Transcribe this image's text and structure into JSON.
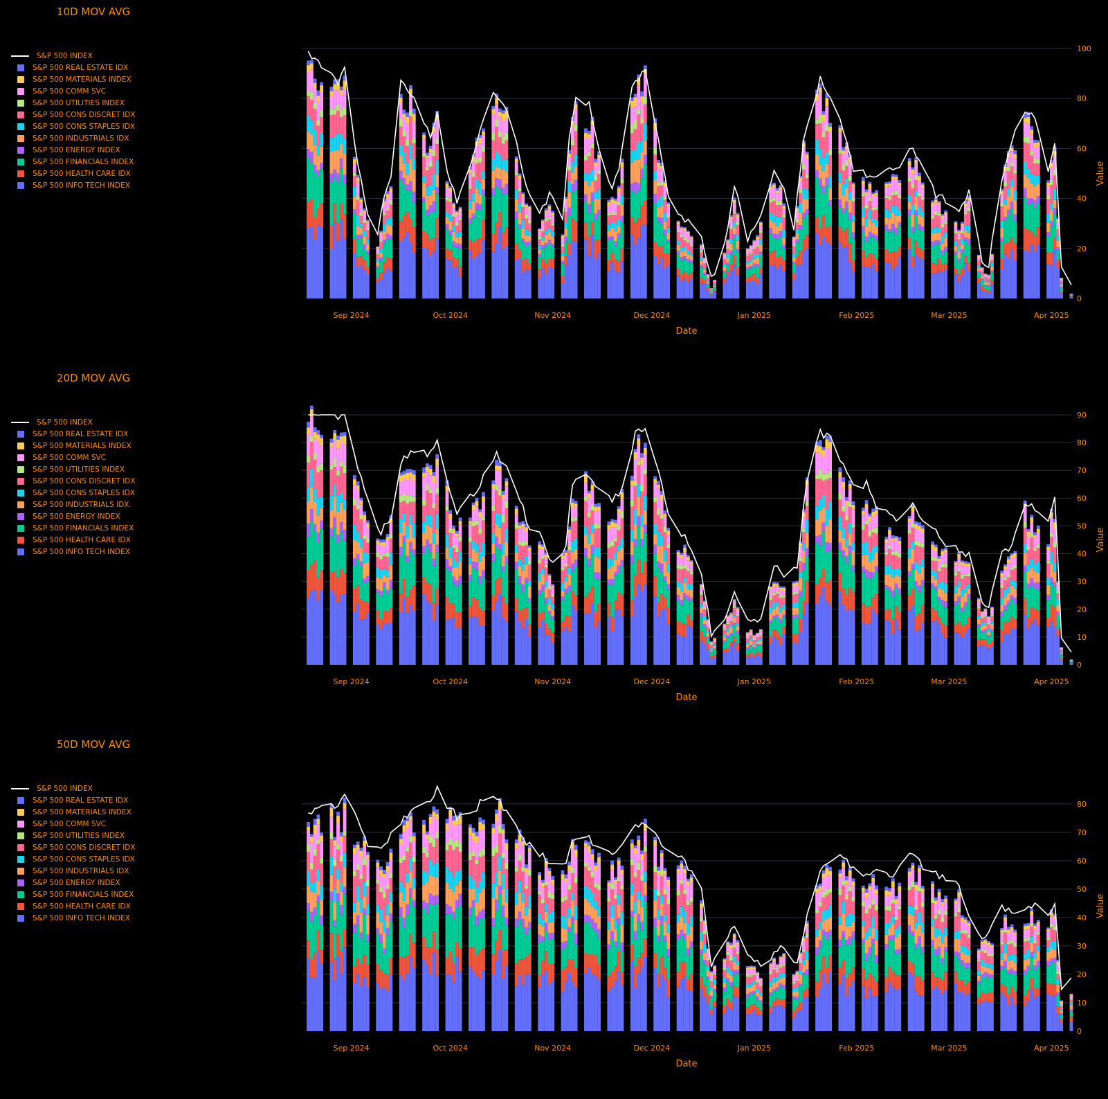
{
  "figure": {
    "background": "#000000",
    "text_color": "#ff8c00",
    "grid_color": "#283442"
  },
  "legend_items": [
    {
      "label": "S&P 500 INDEX",
      "kind": "line",
      "color": "#ffffff"
    },
    {
      "label": "S&P 500 REAL ESTATE IDX",
      "kind": "bar",
      "color": "#636efa"
    },
    {
      "label": "S&P 500 MATERIALS INDEX",
      "kind": "bar",
      "color": "#fecb52"
    },
    {
      "label": "S&P 500 COMM SVC",
      "kind": "bar",
      "color": "#ff97ff"
    },
    {
      "label": "S&P 500 UTILITIES INDEX",
      "kind": "bar",
      "color": "#b6e880"
    },
    {
      "label": "S&P 500 CONS DISCRET IDX",
      "kind": "bar",
      "color": "#ff6692"
    },
    {
      "label": "S&P 500 CONS STAPLES IDX",
      "kind": "bar",
      "color": "#19d3f3"
    },
    {
      "label": "S&P 500 INDUSTRIALS IDX",
      "kind": "bar",
      "color": "#ffa15a"
    },
    {
      "label": "S&P 500 ENERGY INDEX",
      "kind": "bar",
      "color": "#ab63fa"
    },
    {
      "label": "S&P 500 FINANCIALS INDEX",
      "kind": "bar",
      "color": "#00cc96"
    },
    {
      "label": "S&P 500 HEALTH CARE IDX",
      "kind": "bar",
      "color": "#ef553b"
    },
    {
      "label": "S&P 500 INFO TECH INDEX",
      "kind": "bar",
      "color": "#636efa"
    }
  ],
  "chart_data": [
    {
      "type": "bar",
      "barmode": "stack",
      "title": "10D MOV AVG",
      "xlabel": "Date",
      "ylabel": "Value",
      "ylim": [
        0,
        100
      ],
      "yticks": [
        0,
        20,
        40,
        60,
        80,
        100
      ],
      "xticks": [
        {
          "label": "Sep 2024",
          "date": "2024-09-01"
        },
        {
          "label": "Oct 2024",
          "date": "2024-10-01"
        },
        {
          "label": "Nov 2024",
          "date": "2024-11-01"
        },
        {
          "label": "Dec 2024",
          "date": "2024-12-01"
        },
        {
          "label": "Jan 2025",
          "date": "2025-01-01"
        },
        {
          "label": "Feb 2025",
          "date": "2025-02-01"
        },
        {
          "label": "Mar 2025",
          "date": "2025-03-01"
        },
        {
          "label": "Apr 2025",
          "date": "2025-04-01"
        }
      ],
      "xrange": [
        "2024-08-17",
        "2025-04-07"
      ],
      "grid": true,
      "legend_position": "left",
      "date_keypoints": [
        [
          "2024-08-19",
          94
        ],
        [
          "2024-08-23",
          90
        ],
        [
          "2024-08-28",
          82
        ],
        [
          "2024-08-30",
          88
        ],
        [
          "2024-09-03",
          50
        ],
        [
          "2024-09-06",
          30
        ],
        [
          "2024-09-09",
          22
        ],
        [
          "2024-09-11",
          38
        ],
        [
          "2024-09-13",
          45
        ],
        [
          "2024-09-16",
          83
        ],
        [
          "2024-09-20",
          78
        ],
        [
          "2024-09-25",
          60
        ],
        [
          "2024-09-27",
          72
        ],
        [
          "2024-09-30",
          48
        ],
        [
          "2024-10-03",
          36
        ],
        [
          "2024-10-07",
          50
        ],
        [
          "2024-10-10",
          65
        ],
        [
          "2024-10-14",
          80
        ],
        [
          "2024-10-18",
          72
        ],
        [
          "2024-10-21",
          60
        ],
        [
          "2024-10-24",
          40
        ],
        [
          "2024-10-28",
          30
        ],
        [
          "2024-10-31",
          38
        ],
        [
          "2024-11-04",
          28
        ],
        [
          "2024-11-06",
          62
        ],
        [
          "2024-11-08",
          76
        ],
        [
          "2024-11-12",
          74
        ],
        [
          "2024-11-15",
          55
        ],
        [
          "2024-11-19",
          40
        ],
        [
          "2024-11-21",
          48
        ],
        [
          "2024-11-25",
          82
        ],
        [
          "2024-11-29",
          88
        ],
        [
          "2024-12-03",
          60
        ],
        [
          "2024-12-06",
          36
        ],
        [
          "2024-12-11",
          28
        ],
        [
          "2024-12-16",
          22
        ],
        [
          "2024-12-19",
          4
        ],
        [
          "2024-12-23",
          18
        ],
        [
          "2024-12-26",
          42
        ],
        [
          "2024-12-30",
          20
        ],
        [
          "2025-01-03",
          30
        ],
        [
          "2025-01-07",
          48
        ],
        [
          "2025-01-10",
          40
        ],
        [
          "2025-01-13",
          25
        ],
        [
          "2025-01-16",
          60
        ],
        [
          "2025-01-21",
          84
        ],
        [
          "2025-01-24",
          78
        ],
        [
          "2025-01-28",
          64
        ],
        [
          "2025-01-31",
          48
        ],
        [
          "2025-02-04",
          46
        ],
        [
          "2025-02-07",
          44
        ],
        [
          "2025-02-11",
          48
        ],
        [
          "2025-02-14",
          50
        ],
        [
          "2025-02-18",
          58
        ],
        [
          "2025-02-21",
          48
        ],
        [
          "2025-02-25",
          38
        ],
        [
          "2025-02-28",
          36
        ],
        [
          "2025-03-04",
          30
        ],
        [
          "2025-03-07",
          40
        ],
        [
          "2025-03-11",
          12
        ],
        [
          "2025-03-13",
          10
        ],
        [
          "2025-03-17",
          45
        ],
        [
          "2025-03-20",
          60
        ],
        [
          "2025-03-24",
          72
        ],
        [
          "2025-03-27",
          68
        ],
        [
          "2025-03-31",
          46
        ],
        [
          "2025-04-02",
          60
        ],
        [
          "2025-04-04",
          8
        ],
        [
          "2025-04-07",
          2
        ]
      ]
    },
    {
      "type": "bar",
      "barmode": "stack",
      "title": "20D MOV AVG",
      "xlabel": "Date",
      "ylabel": "Value",
      "ylim": [
        0,
        90
      ],
      "yticks": [
        0,
        10,
        20,
        30,
        40,
        50,
        60,
        70,
        80,
        90
      ],
      "xticks": [
        {
          "label": "Sep 2024",
          "date": "2024-09-01"
        },
        {
          "label": "Oct 2024",
          "date": "2024-10-01"
        },
        {
          "label": "Nov 2024",
          "date": "2024-11-01"
        },
        {
          "label": "Dec 2024",
          "date": "2024-12-01"
        },
        {
          "label": "Jan 2025",
          "date": "2025-01-01"
        },
        {
          "label": "Feb 2025",
          "date": "2025-02-01"
        },
        {
          "label": "Mar 2025",
          "date": "2025-03-01"
        },
        {
          "label": "Apr 2025",
          "date": "2025-04-01"
        }
      ],
      "xrange": [
        "2024-08-17",
        "2025-04-07"
      ],
      "grid": true,
      "legend_position": "left",
      "date_keypoints": [
        [
          "2024-08-19",
          86
        ],
        [
          "2024-08-23",
          88
        ],
        [
          "2024-08-28",
          86
        ],
        [
          "2024-08-30",
          90
        ],
        [
          "2024-09-03",
          68
        ],
        [
          "2024-09-06",
          55
        ],
        [
          "2024-09-10",
          44
        ],
        [
          "2024-09-13",
          50
        ],
        [
          "2024-09-16",
          70
        ],
        [
          "2024-09-20",
          74
        ],
        [
          "2024-09-25",
          72
        ],
        [
          "2024-09-27",
          76
        ],
        [
          "2024-09-30",
          62
        ],
        [
          "2024-10-03",
          52
        ],
        [
          "2024-10-08",
          58
        ],
        [
          "2024-10-11",
          64
        ],
        [
          "2024-10-15",
          72
        ],
        [
          "2024-10-18",
          68
        ],
        [
          "2024-10-22",
          56
        ],
        [
          "2024-10-25",
          46
        ],
        [
          "2024-10-29",
          42
        ],
        [
          "2024-11-01",
          32
        ],
        [
          "2024-11-05",
          40
        ],
        [
          "2024-11-07",
          62
        ],
        [
          "2024-11-11",
          66
        ],
        [
          "2024-11-14",
          62
        ],
        [
          "2024-11-19",
          56
        ],
        [
          "2024-11-22",
          60
        ],
        [
          "2024-11-26",
          80
        ],
        [
          "2024-11-29",
          82
        ],
        [
          "2024-12-03",
          66
        ],
        [
          "2024-12-06",
          50
        ],
        [
          "2024-12-11",
          42
        ],
        [
          "2024-12-16",
          30
        ],
        [
          "2024-12-19",
          8
        ],
        [
          "2024-12-23",
          14
        ],
        [
          "2024-12-26",
          22
        ],
        [
          "2024-12-30",
          12
        ],
        [
          "2025-01-03",
          12
        ],
        [
          "2025-01-07",
          32
        ],
        [
          "2025-01-10",
          28
        ],
        [
          "2025-01-14",
          32
        ],
        [
          "2025-01-17",
          64
        ],
        [
          "2025-01-21",
          80
        ],
        [
          "2025-01-24",
          78
        ],
        [
          "2025-01-28",
          68
        ],
        [
          "2025-01-31",
          60
        ],
        [
          "2025-02-04",
          62
        ],
        [
          "2025-02-07",
          54
        ],
        [
          "2025-02-11",
          50
        ],
        [
          "2025-02-14",
          48
        ],
        [
          "2025-02-18",
          56
        ],
        [
          "2025-02-21",
          48
        ],
        [
          "2025-02-25",
          44
        ],
        [
          "2025-02-28",
          40
        ],
        [
          "2025-03-04",
          38
        ],
        [
          "2025-03-07",
          36
        ],
        [
          "2025-03-11",
          20
        ],
        [
          "2025-03-13",
          18
        ],
        [
          "2025-03-17",
          36
        ],
        [
          "2025-03-20",
          40
        ],
        [
          "2025-03-24",
          55
        ],
        [
          "2025-03-27",
          52
        ],
        [
          "2025-03-31",
          48
        ],
        [
          "2025-04-02",
          58
        ],
        [
          "2025-04-04",
          6
        ],
        [
          "2025-04-07",
          2
        ]
      ]
    },
    {
      "type": "bar",
      "barmode": "stack",
      "title": "50D MOV AVG",
      "xlabel": "Date",
      "ylabel": "Value",
      "ylim": [
        0,
        88
      ],
      "yticks": [
        0,
        10,
        20,
        30,
        40,
        50,
        60,
        70,
        80
      ],
      "xticks": [
        {
          "label": "Sep 2024",
          "date": "2024-09-01"
        },
        {
          "label": "Oct 2024",
          "date": "2024-10-01"
        },
        {
          "label": "Nov 2024",
          "date": "2024-11-01"
        },
        {
          "label": "Dec 2024",
          "date": "2024-12-01"
        },
        {
          "label": "Jan 2025",
          "date": "2025-01-01"
        },
        {
          "label": "Feb 2025",
          "date": "2025-02-01"
        },
        {
          "label": "Mar 2025",
          "date": "2025-03-01"
        },
        {
          "label": "Apr 2025",
          "date": "2025-04-01"
        }
      ],
      "xrange": [
        "2024-08-17",
        "2025-04-07"
      ],
      "grid": true,
      "legend_position": "left",
      "date_keypoints": [
        [
          "2024-08-19",
          72
        ],
        [
          "2024-08-23",
          76
        ],
        [
          "2024-08-28",
          75
        ],
        [
          "2024-08-30",
          80
        ],
        [
          "2024-09-03",
          70
        ],
        [
          "2024-09-06",
          62
        ],
        [
          "2024-09-10",
          60
        ],
        [
          "2024-09-13",
          66
        ],
        [
          "2024-09-16",
          70
        ],
        [
          "2024-09-20",
          76
        ],
        [
          "2024-09-25",
          78
        ],
        [
          "2024-09-27",
          82
        ],
        [
          "2024-09-30",
          76
        ],
        [
          "2024-10-03",
          72
        ],
        [
          "2024-10-08",
          74
        ],
        [
          "2024-10-11",
          78
        ],
        [
          "2024-10-15",
          78
        ],
        [
          "2024-10-18",
          74
        ],
        [
          "2024-10-22",
          66
        ],
        [
          "2024-10-25",
          62
        ],
        [
          "2024-10-29",
          58
        ],
        [
          "2024-11-01",
          54
        ],
        [
          "2024-11-05",
          56
        ],
        [
          "2024-11-07",
          64
        ],
        [
          "2024-11-11",
          66
        ],
        [
          "2024-11-14",
          62
        ],
        [
          "2024-11-19",
          58
        ],
        [
          "2024-11-22",
          62
        ],
        [
          "2024-11-26",
          68
        ],
        [
          "2024-11-29",
          70
        ],
        [
          "2024-12-03",
          64
        ],
        [
          "2024-12-06",
          60
        ],
        [
          "2024-12-11",
          56
        ],
        [
          "2024-12-16",
          48
        ],
        [
          "2024-12-19",
          20
        ],
        [
          "2024-12-23",
          28
        ],
        [
          "2024-12-26",
          34
        ],
        [
          "2024-12-30",
          24
        ],
        [
          "2025-01-03",
          20
        ],
        [
          "2025-01-07",
          24
        ],
        [
          "2025-01-10",
          26
        ],
        [
          "2025-01-14",
          20
        ],
        [
          "2025-01-17",
          38
        ],
        [
          "2025-01-21",
          52
        ],
        [
          "2025-01-24",
          56
        ],
        [
          "2025-01-28",
          58
        ],
        [
          "2025-01-31",
          54
        ],
        [
          "2025-02-04",
          52
        ],
        [
          "2025-02-07",
          54
        ],
        [
          "2025-02-11",
          50
        ],
        [
          "2025-02-14",
          54
        ],
        [
          "2025-02-18",
          60
        ],
        [
          "2025-02-21",
          54
        ],
        [
          "2025-02-25",
          52
        ],
        [
          "2025-02-28",
          50
        ],
        [
          "2025-03-04",
          48
        ],
        [
          "2025-03-07",
          38
        ],
        [
          "2025-03-11",
          30
        ],
        [
          "2025-03-13",
          32
        ],
        [
          "2025-03-17",
          40
        ],
        [
          "2025-03-20",
          38
        ],
        [
          "2025-03-24",
          40
        ],
        [
          "2025-03-27",
          42
        ],
        [
          "2025-03-31",
          38
        ],
        [
          "2025-04-02",
          42
        ],
        [
          "2025-04-04",
          12
        ],
        [
          "2025-04-07",
          14
        ]
      ]
    }
  ]
}
